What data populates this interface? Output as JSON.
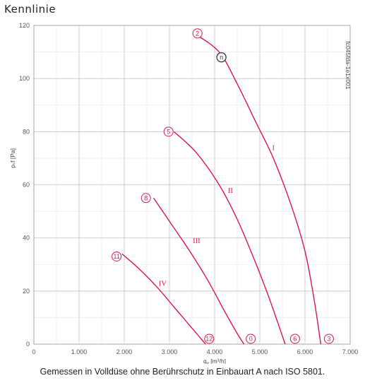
{
  "title": "Kennlinie",
  "caption": "Gemessen in Volldüse ohne Berührschutz in Einbauart A nach ISO 5801.",
  "colors": {
    "curve": "#d8174f",
    "grid_major": "#c8c8c8",
    "grid_minor": "#e6e6e6",
    "axis": "#999999",
    "op_marker": "#333333"
  },
  "chart_data": {
    "type": "line",
    "title": "Kennlinie",
    "xlabel": "q",
    "xlabel_sub": "v",
    "xlabel_unit": "[m³/h]",
    "ylabel": "pₛf [Pa]",
    "xlim": [
      0,
      7000
    ],
    "ylim": [
      0,
      120
    ],
    "x_ticks": [
      0,
      1000,
      2000,
      3000,
      4000,
      5000,
      6000,
      7000
    ],
    "x_tick_labels": [
      "0",
      "1.000",
      "2.000",
      "3.000",
      "4.000",
      "5.000",
      "6.000",
      "7.000"
    ],
    "y_ticks": [
      0,
      20,
      40,
      60,
      80,
      100,
      120
    ],
    "y_tick_labels": [
      "0",
      "20",
      "40",
      "60",
      "80",
      "100",
      "120"
    ],
    "grid": true,
    "watermark": "fc045fda-1e1x001",
    "series": [
      {
        "name": "I",
        "label_at": [
          5300,
          73
        ],
        "points": [
          [
            3550,
            117
          ],
          [
            4100,
            110
          ],
          [
            4500,
            98
          ],
          [
            4900,
            84
          ],
          [
            5300,
            70
          ],
          [
            5700,
            52
          ],
          [
            6000,
            35
          ],
          [
            6200,
            17
          ],
          [
            6350,
            0
          ]
        ],
        "markers": [
          {
            "text": "2",
            "at": [
              3620,
              117
            ]
          },
          {
            "text": "3",
            "at": [
              6530,
              2
            ]
          }
        ]
      },
      {
        "name": "II",
        "label_at": [
          4350,
          57
        ],
        "points": [
          [
            3100,
            80
          ],
          [
            3600,
            72
          ],
          [
            4100,
            60
          ],
          [
            4500,
            47
          ],
          [
            4850,
            33
          ],
          [
            5150,
            20
          ],
          [
            5400,
            8
          ],
          [
            5560,
            0
          ]
        ],
        "markers": [
          {
            "text": "5",
            "at": [
              2980,
              80
            ]
          },
          {
            "text": "6",
            "at": [
              5780,
              2
            ]
          }
        ]
      },
      {
        "name": "III",
        "label_at": [
          3600,
          38
        ],
        "points": [
          [
            2650,
            55
          ],
          [
            3050,
            45
          ],
          [
            3450,
            35
          ],
          [
            3850,
            24
          ],
          [
            4200,
            13
          ],
          [
            4500,
            4
          ],
          [
            4650,
            0
          ]
        ],
        "markers": [
          {
            "text": "8",
            "at": [
              2480,
              55
            ]
          },
          {
            "text": "0",
            "at": [
              4800,
              2
            ]
          }
        ]
      },
      {
        "name": "IV",
        "label_at": [
          2850,
          22
        ],
        "points": [
          [
            1950,
            34
          ],
          [
            2350,
            28
          ],
          [
            2750,
            21
          ],
          [
            3100,
            14
          ],
          [
            3450,
            7
          ],
          [
            3800,
            0
          ]
        ],
        "markers": [
          {
            "text": "11",
            "at": [
              1830,
              33
            ]
          },
          {
            "text": "12",
            "at": [
              3880,
              2
            ]
          }
        ]
      }
    ],
    "operating_point": {
      "text": "n",
      "at": [
        4150,
        108
      ]
    }
  }
}
